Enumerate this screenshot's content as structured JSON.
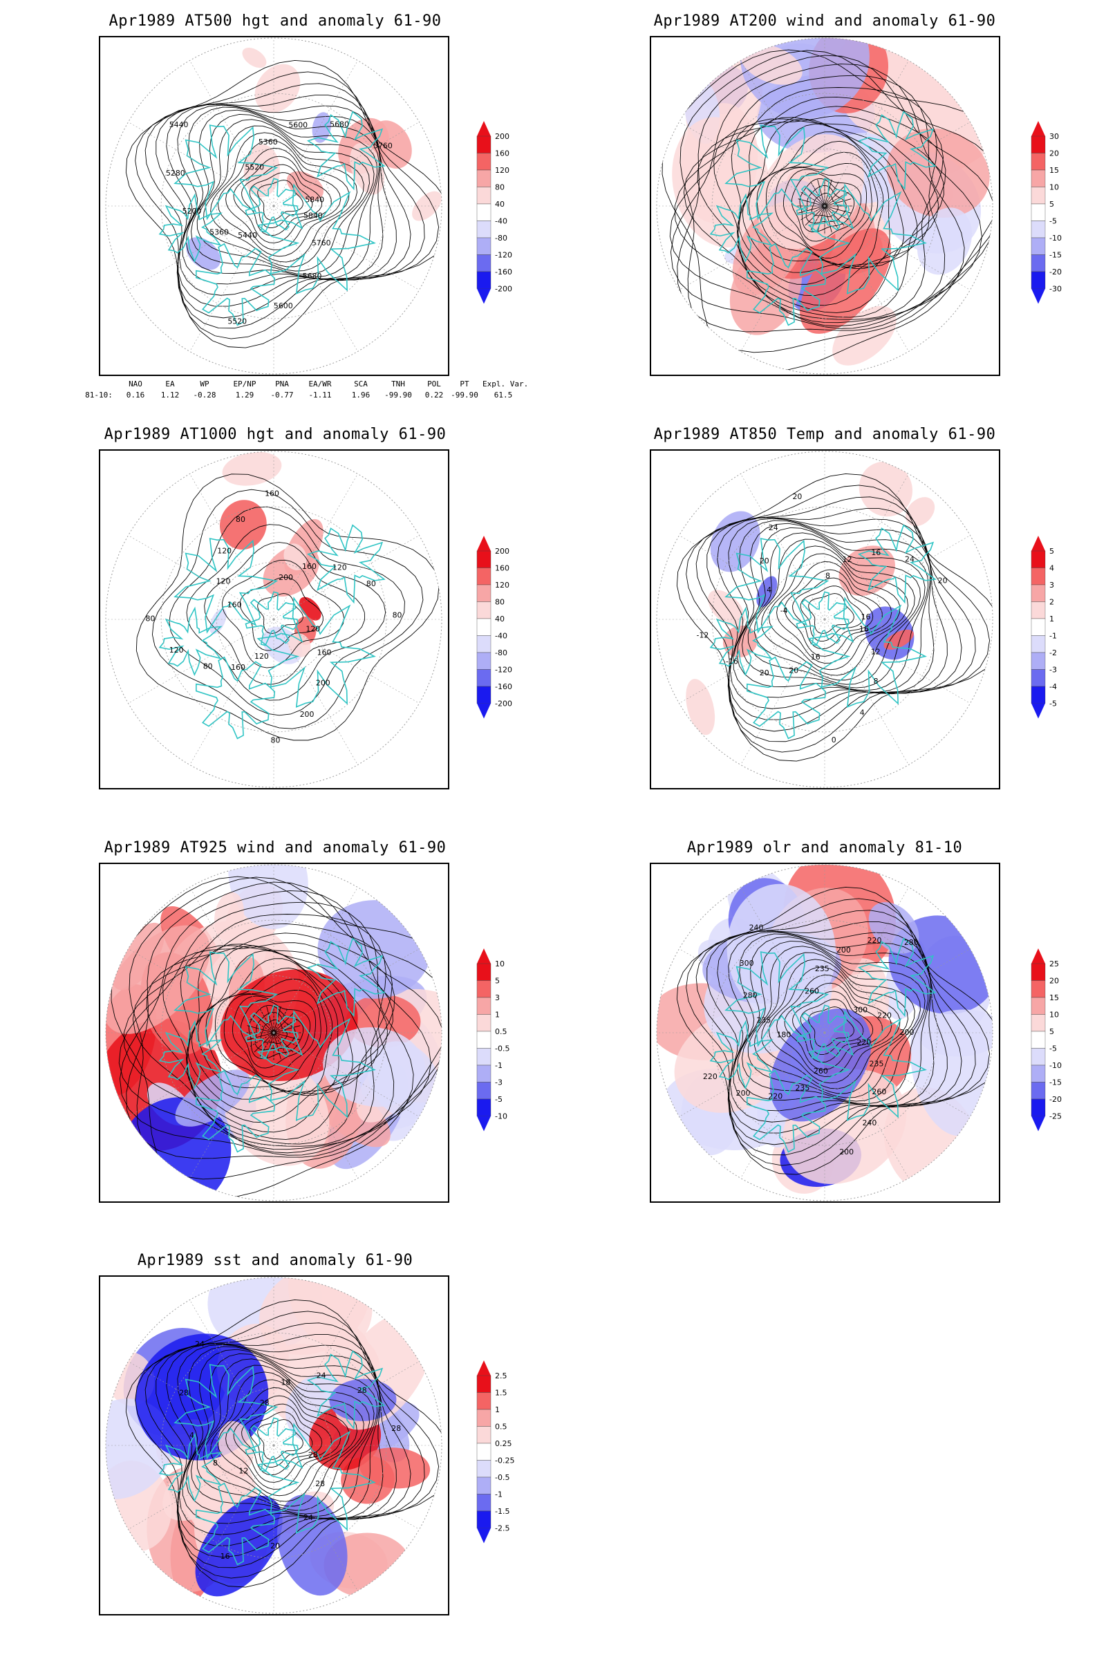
{
  "colors": {
    "coast": "#2ec4c4",
    "contour": "#000000",
    "grid": "#9a9a9a",
    "pos_strong": "#e8101a",
    "pos_mid": "#f46464",
    "pos_light": "#f7a6a6",
    "pos_faint": "#fbd9d9",
    "neg_faint": "#dcdcfb",
    "neg_light": "#aeaef6",
    "neg_mid": "#6b6bf0",
    "neg_strong": "#1a1aef"
  },
  "panels": [
    {
      "id": "p500",
      "title": "Apr1989 AT500 hgt and anomaly 61-90",
      "colorbar": [
        "200",
        "160",
        "120",
        "80",
        "40",
        "-40",
        "-80",
        "-120",
        "-160",
        "-200"
      ]
    },
    {
      "id": "p200",
      "title": "Apr1989 AT200 wind and anomaly 61-90",
      "colorbar": [
        "30",
        "20",
        "15",
        "10",
        "5",
        "-5",
        "-10",
        "-15",
        "-20",
        "-30"
      ]
    },
    {
      "id": "p1000",
      "title": "Apr1989 AT1000 hgt and anomaly 61-90",
      "colorbar": [
        "200",
        "160",
        "120",
        "80",
        "40",
        "-40",
        "-80",
        "-120",
        "-160",
        "-200"
      ]
    },
    {
      "id": "p850",
      "title": "Apr1989 AT850 Temp and anomaly 61-90",
      "colorbar": [
        "5",
        "4",
        "3",
        "2",
        "1",
        "-1",
        "-2",
        "-3",
        "-4",
        "-5"
      ]
    },
    {
      "id": "p925",
      "title": "Apr1989 AT925 wind and anomaly 61-90",
      "colorbar": [
        "10",
        "5",
        "3",
        "1",
        "0.5",
        "-0.5",
        "-1",
        "-3",
        "-5",
        "-10"
      ]
    },
    {
      "id": "polr",
      "title": "Apr1989 olr and anomaly 81-10",
      "colorbar": [
        "25",
        "20",
        "15",
        "10",
        "5",
        "-5",
        "-10",
        "-15",
        "-20",
        "-25"
      ]
    },
    {
      "id": "psst",
      "title": "Apr1989 sst and anomaly 61-90",
      "colorbar": [
        "2.5",
        "1.5",
        "1",
        "0.5",
        "0.25",
        "-0.25",
        "-0.5",
        "-1",
        "-1.5",
        "-2.5"
      ]
    }
  ],
  "contour_labels": {
    "p500": [
      "5840",
      "5760",
      "5680",
      "5600",
      "5520",
      "5440",
      "5360",
      "5200",
      "5280",
      "5440",
      "5520",
      "5360",
      "5600",
      "5680",
      "5760",
      "5840"
    ],
    "p1000": [
      "120",
      "160",
      "200",
      "200",
      "80",
      "120",
      "160",
      "80",
      "120",
      "80",
      "160",
      "120",
      "120",
      "80",
      "160",
      "200",
      "160",
      "120",
      "80",
      "80"
    ],
    "p850": [
      "16",
      "12",
      "8",
      "4",
      "0",
      "16",
      "20",
      "20",
      "-16",
      "-12",
      "-4",
      "4",
      "20",
      "24",
      "20",
      "8",
      "12",
      "16",
      "24",
      "20",
      "16"
    ],
    "polr": [
      "220",
      "235",
      "260",
      "240",
      "200",
      "260",
      "235",
      "220",
      "200",
      "220",
      "180",
      "235",
      "280",
      "300",
      "240",
      "260",
      "235",
      "200",
      "220",
      "280",
      "300",
      "220",
      "200"
    ],
    "psst": [
      "28",
      "28",
      "24",
      "20",
      "16",
      "12",
      "8",
      "4",
      "28",
      "24",
      "28",
      "18",
      "24",
      "28",
      "28"
    ]
  },
  "index_table": {
    "headers": [
      "NAO",
      "EA",
      "WP",
      "EP/NP",
      "PNA",
      "EA/WR",
      "SCA",
      "TNH",
      "POL",
      "PT",
      "Expl. Var."
    ],
    "row_label": "81-10:",
    "values": [
      "0.16",
      "1.12",
      "-0.28",
      "1.29",
      "-0.77",
      "-1.11",
      "1.96",
      "-99.90",
      "0.22",
      "-99.90",
      "61.5"
    ]
  },
  "chart_data": [
    {
      "type": "heatmap",
      "title": "Apr1989 AT500 hgt and anomaly 61-90",
      "variable": "500 hPa geopotential height (contours) and anomaly (shaded)",
      "colorbar_levels": [
        -200,
        -160,
        -120,
        -80,
        -40,
        40,
        80,
        120,
        160,
        200
      ],
      "contour_levels_labeled": [
        5200,
        5280,
        5360,
        5440,
        5520,
        5600,
        5680,
        5760,
        5840
      ]
    },
    {
      "type": "heatmap",
      "title": "Apr1989 AT200 wind and anomaly 61-90",
      "variable": "200 hPa wind streamlines and anomaly (shaded)",
      "colorbar_levels": [
        -30,
        -20,
        -15,
        -10,
        -5,
        5,
        10,
        15,
        20,
        30
      ]
    },
    {
      "type": "heatmap",
      "title": "Apr1989 AT1000 hgt and anomaly 61-90",
      "variable": "1000 hPa height (contours) and anomaly (shaded)",
      "colorbar_levels": [
        -200,
        -160,
        -120,
        -80,
        -40,
        40,
        80,
        120,
        160,
        200
      ],
      "contour_levels_labeled": [
        80,
        120,
        160,
        200
      ]
    },
    {
      "type": "heatmap",
      "title": "Apr1989 AT850 Temp and anomaly 61-90",
      "variable": "850 hPa temperature (contours) and anomaly (shaded)",
      "colorbar_levels": [
        -5,
        -4,
        -3,
        -2,
        -1,
        1,
        2,
        3,
        4,
        5
      ],
      "contour_levels_labeled": [
        -16,
        -12,
        -4,
        0,
        4,
        8,
        12,
        16,
        20,
        24
      ]
    },
    {
      "type": "heatmap",
      "title": "Apr1989 AT925 wind and anomaly 61-90",
      "variable": "925 hPa wind streamlines and anomaly (shaded)",
      "colorbar_levels": [
        -10,
        -5,
        -3,
        -1,
        -0.5,
        0.5,
        1,
        3,
        5,
        10
      ]
    },
    {
      "type": "heatmap",
      "title": "Apr1989 olr and anomaly 81-10",
      "variable": "OLR (contours) and anomaly (shaded)",
      "colorbar_levels": [
        -25,
        -20,
        -15,
        -10,
        -5,
        5,
        10,
        15,
        20,
        25
      ],
      "contour_levels_labeled": [
        180,
        200,
        220,
        235,
        240,
        260,
        280,
        300
      ]
    },
    {
      "type": "heatmap",
      "title": "Apr1989 sst and anomaly 61-90",
      "variable": "SST (contours) and anomaly (shaded)",
      "colorbar_levels": [
        -2.5,
        -1.5,
        -1,
        -0.5,
        -0.25,
        0.25,
        0.5,
        1,
        1.5,
        2.5
      ],
      "contour_levels_labeled": [
        0,
        4,
        8,
        12,
        16,
        18,
        20,
        24,
        28
      ]
    }
  ]
}
